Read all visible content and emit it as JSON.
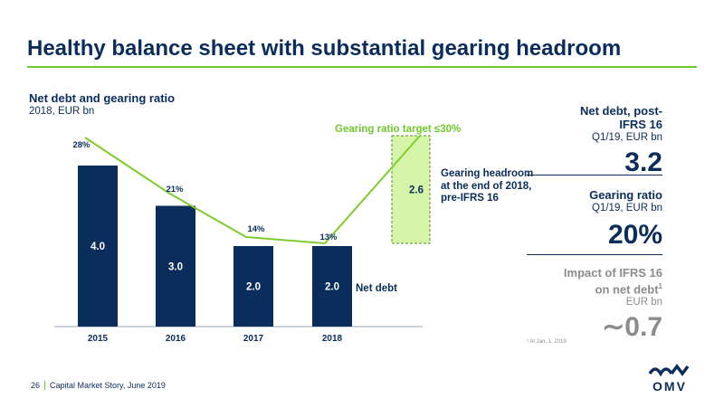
{
  "slide": {
    "title": "Healthy balance sheet with substantial gearing headroom"
  },
  "chart": {
    "title": "Net debt and gearing ratio",
    "subtitle": "2018, EUR bn",
    "target_label": "Gearing ratio target ≤30%",
    "headroom_label": "Gearing headroom at the end of 2018, pre-IFRS 16",
    "net_debt_label": "Net debt"
  },
  "chart_data": {
    "type": "bar",
    "title": "Net debt and gearing ratio",
    "subtitle": "2018, EUR bn",
    "categories": [
      "2015",
      "2016",
      "2017",
      "2018"
    ],
    "series": [
      {
        "name": "Net debt",
        "values": [
          4.0,
          3.0,
          2.0,
          2.0
        ],
        "labels": [
          "4.0",
          "3.0",
          "2.0",
          "2.0"
        ]
      }
    ],
    "line": {
      "values": [
        28,
        21,
        14,
        13
      ],
      "labels": [
        "28%",
        "21%",
        "14%",
        "13%"
      ],
      "target": 30
    },
    "headroom": {
      "value": 2.6,
      "label": "2.6"
    },
    "colors": {
      "bar": "#0b2d5b",
      "line": "#7fcc2e",
      "headroom_fill": "#d6f5a8",
      "headroom_border": "#5a8a2a"
    }
  },
  "sidebar": {
    "net_debt": {
      "heading": "Net debt, post-IFRS 16",
      "sub": "Q1/19, EUR bn",
      "value": "3.2"
    },
    "gearing": {
      "heading": "Gearing ratio",
      "sub": "Q1/19, EUR bn",
      "value": "20%"
    },
    "ifrs": {
      "heading": "Impact of IFRS 16 on net debt",
      "sup": "1",
      "sub": "EUR bn",
      "value": "∼0.7"
    },
    "footnote": "¹ At Jan. 1, 2019"
  },
  "footer": {
    "page": "26",
    "text": "Capital Market Story, June 2019"
  },
  "logo": {
    "text": "OMV"
  },
  "colors": {
    "navy": "#0b2d5b",
    "green": "#6ec92a",
    "grey": "#8c8c8c"
  }
}
